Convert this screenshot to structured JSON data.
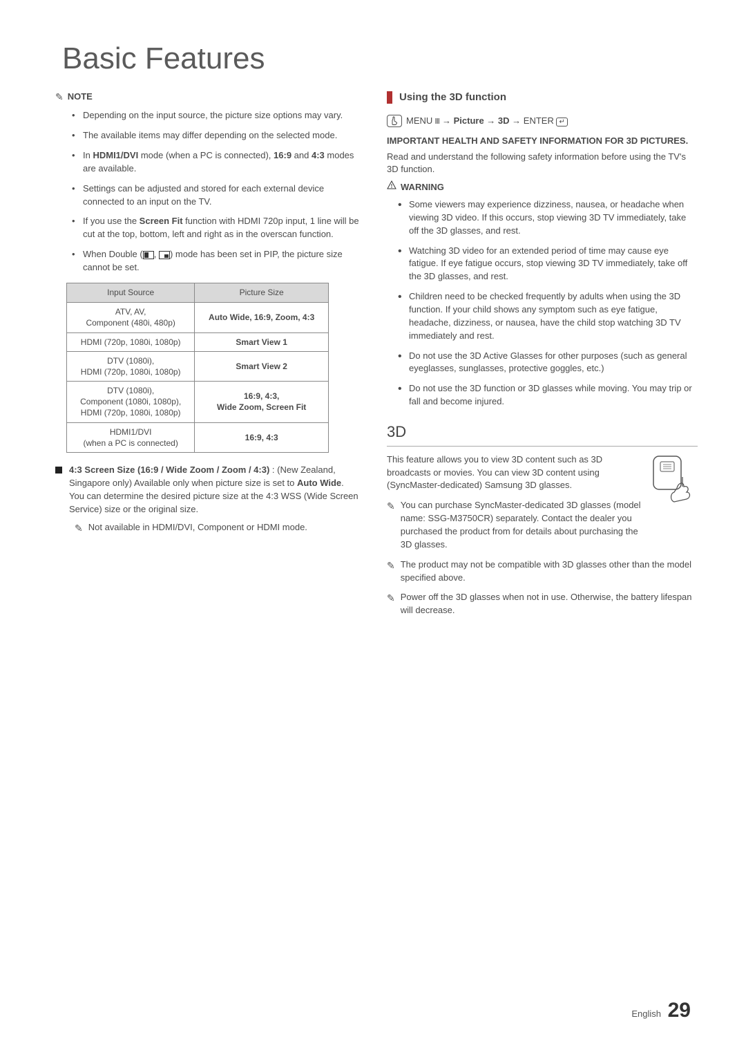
{
  "page": {
    "title": "Basic Features",
    "footer_lang": "English",
    "footer_page": "29"
  },
  "left": {
    "note_label": "NOTE",
    "bullets": [
      "Depending on the input source, the picture size options may vary.",
      "The available items may differ depending on the selected mode.",
      "__HTML__In <b>HDMI1/DVI</b> mode (when a PC is connected), <b>16:9</b> and <b>4:3</b> modes are available.",
      "Settings can be adjusted and stored for each external device connected to an input on the TV.",
      "__HTML__If you use the <b>Screen Fit</b> function with HDMI 720p input, 1 line will be cut at the top, bottom, left and right as in the overscan function.",
      "__HTML__When Double (<span class='pip-icon left'></span>, <span class='pip-icon right'></span>) mode has been set in PIP, the picture size cannot be set."
    ],
    "table": {
      "headers": [
        "Input Source",
        "Picture Size"
      ],
      "rows": [
        [
          "ATV, AV,\nComponent (480i, 480p)",
          "Auto Wide, 16:9, Zoom, 4:3"
        ],
        [
          "HDMI (720p, 1080i, 1080p)",
          "Smart View 1"
        ],
        [
          "DTV (1080i),\nHDMI (720p, 1080i, 1080p)",
          "Smart View 2"
        ],
        [
          "DTV (1080i),\nComponent (1080i, 1080p),\nHDMI (720p, 1080i, 1080p)",
          "16:9, 4:3,\nWide Zoom, Screen Fit"
        ],
        [
          "HDMI1/DVI\n(when a PC is connected)",
          "16:9, 4:3"
        ]
      ]
    },
    "screen43_title": "4:3 Screen Size (16:9 / Wide Zoom / Zoom / 4:3)",
    "screen43_body": ": (New Zealand, Singapore only) Available only when picture size is set to <b>Auto Wide</b>. You can determine the desired picture size at the 4:3 WSS (Wide Screen Service) size or the original size.",
    "screen43_note": "Not available in HDMI/DVI, Component or HDMI mode."
  },
  "right": {
    "section_title": "Using the 3D function",
    "menu_path": "MENU Ⅲ → Picture → 3D → ENTER",
    "important": "IMPORTANT HEALTH AND SAFETY INFORMATION FOR 3D PICTURES.",
    "read_text": "Read and understand the following safety information before using the TV's 3D function.",
    "warning_label": "WARNING",
    "warnings": [
      "Some viewers may experience dizziness, nausea, or headache when viewing 3D video. If this occurs, stop viewing 3D TV immediately, take off the 3D glasses, and rest.",
      "Watching 3D video for an extended period of time may cause eye fatigue. If eye fatigue occurs, stop viewing 3D TV immediately, take off the 3D glasses, and rest.",
      "Children need to be checked frequently by adults when using the 3D function. If your child shows any symptom such as eye fatigue, headache, dizziness, or nausea, have the child stop watching 3D TV immediately and rest.",
      "Do not use the 3D Active Glasses for other purposes (such as general eyeglasses, sunglasses, protective goggles, etc.)",
      "Do not use the 3D function or 3D glasses while moving. You may trip or fall and become injured."
    ],
    "h3": "3D",
    "threeD_body": "This feature allows you to view 3D content such as 3D broadcasts or movies. You can view 3D content using (SyncMaster-dedicated) Samsung 3D glasses.",
    "tips": [
      "You can purchase SyncMaster-dedicated 3D glasses (model name: SSG-M3750CR) separately. Contact the dealer you purchased the product from for details about purchasing the 3D glasses.",
      "The product may not be compatible with 3D glasses other than the model specified above.",
      "Power off the 3D glasses when not in use. Otherwise, the battery lifespan will decrease."
    ]
  }
}
